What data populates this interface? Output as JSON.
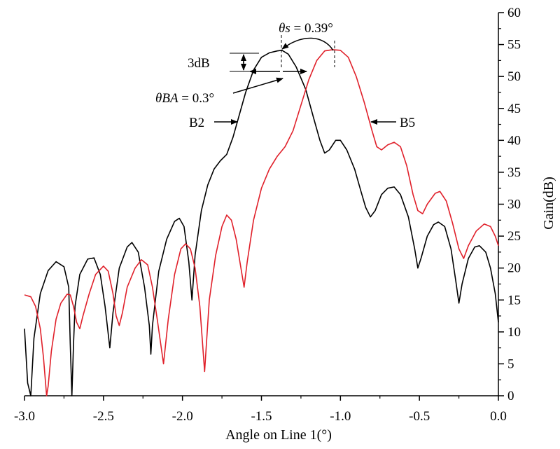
{
  "chart_data": {
    "type": "line",
    "xlabel": "Angle on Line 1(°)",
    "ylabel": "Gain(dB)",
    "xlim": [
      -3.0,
      0.0
    ],
    "ylim": [
      0,
      60
    ],
    "x_ticks": [
      "-3.0",
      "-2.5",
      "-2.0",
      "-1.5",
      "-1.0",
      "-0.5",
      "0.0"
    ],
    "y_ticks": [
      "0",
      "5",
      "10",
      "15",
      "20",
      "25",
      "30",
      "35",
      "40",
      "45",
      "50",
      "55",
      "60"
    ],
    "y_axis_side": "right",
    "grid": false,
    "series": [
      {
        "name": "B2",
        "color": "#000000",
        "points": [
          [
            -3.0,
            10.5
          ],
          [
            -2.98,
            2.0
          ],
          [
            -2.96,
            0
          ],
          [
            -2.94,
            9.0
          ],
          [
            -2.9,
            16.0
          ],
          [
            -2.85,
            19.6
          ],
          [
            -2.8,
            21.0
          ],
          [
            -2.75,
            20.2
          ],
          [
            -2.72,
            17.0
          ],
          [
            -2.71,
            8.0
          ],
          [
            -2.7,
            0
          ],
          [
            -2.69,
            8.0
          ],
          [
            -2.68,
            14.0
          ],
          [
            -2.65,
            19.0
          ],
          [
            -2.6,
            21.4
          ],
          [
            -2.56,
            21.6
          ],
          [
            -2.52,
            19.0
          ],
          [
            -2.49,
            14.0
          ],
          [
            -2.46,
            7.5
          ],
          [
            -2.44,
            13.0
          ],
          [
            -2.4,
            20.0
          ],
          [
            -2.35,
            23.3
          ],
          [
            -2.32,
            24.0
          ],
          [
            -2.28,
            22.5
          ],
          [
            -2.24,
            17.0
          ],
          [
            -2.21,
            11.0
          ],
          [
            -2.2,
            6.5
          ],
          [
            -2.19,
            11.0
          ],
          [
            -2.15,
            19.5
          ],
          [
            -2.1,
            24.5
          ],
          [
            -2.05,
            27.3
          ],
          [
            -2.02,
            27.8
          ],
          [
            -1.99,
            26.5
          ],
          [
            -1.96,
            21.0
          ],
          [
            -1.94,
            15.0
          ],
          [
            -1.92,
            22.0
          ],
          [
            -1.88,
            29.0
          ],
          [
            -1.84,
            33.0
          ],
          [
            -1.8,
            35.5
          ],
          [
            -1.76,
            36.8
          ],
          [
            -1.72,
            37.8
          ],
          [
            -1.68,
            40.5
          ],
          [
            -1.64,
            44.0
          ],
          [
            -1.6,
            47.5
          ],
          [
            -1.55,
            51.0
          ],
          [
            -1.5,
            53.0
          ],
          [
            -1.45,
            53.7
          ],
          [
            -1.4,
            54.0
          ],
          [
            -1.37,
            54.1
          ],
          [
            -1.33,
            53.5
          ],
          [
            -1.28,
            51.5
          ],
          [
            -1.22,
            48.0
          ],
          [
            -1.17,
            43.5
          ],
          [
            -1.13,
            40.0
          ],
          [
            -1.1,
            38.0
          ],
          [
            -1.07,
            38.5
          ],
          [
            -1.03,
            40.0
          ],
          [
            -1.0,
            40.0
          ],
          [
            -0.96,
            38.5
          ],
          [
            -0.91,
            35.5
          ],
          [
            -0.87,
            32.0
          ],
          [
            -0.84,
            29.5
          ],
          [
            -0.81,
            28.0
          ],
          [
            -0.78,
            29.0
          ],
          [
            -0.74,
            31.5
          ],
          [
            -0.7,
            32.5
          ],
          [
            -0.66,
            32.7
          ],
          [
            -0.62,
            31.5
          ],
          [
            -0.57,
            28.0
          ],
          [
            -0.53,
            23.0
          ],
          [
            -0.51,
            20.0
          ],
          [
            -0.49,
            21.5
          ],
          [
            -0.45,
            25.0
          ],
          [
            -0.41,
            26.8
          ],
          [
            -0.38,
            27.2
          ],
          [
            -0.34,
            26.5
          ],
          [
            -0.3,
            23.0
          ],
          [
            -0.27,
            18.0
          ],
          [
            -0.25,
            14.5
          ],
          [
            -0.23,
            17.5
          ],
          [
            -0.19,
            21.5
          ],
          [
            -0.15,
            23.3
          ],
          [
            -0.12,
            23.5
          ],
          [
            -0.08,
            22.5
          ],
          [
            -0.05,
            20.0
          ],
          [
            -0.02,
            16.0
          ],
          [
            0.0,
            11.5
          ]
        ]
      },
      {
        "name": "B5",
        "color": "#e0202a",
        "points": [
          [
            -3.0,
            15.8
          ],
          [
            -2.96,
            15.5
          ],
          [
            -2.93,
            14.0
          ],
          [
            -2.9,
            10.5
          ],
          [
            -2.88,
            6.0
          ],
          [
            -2.86,
            0
          ],
          [
            -2.85,
            1.5
          ],
          [
            -2.83,
            7.0
          ],
          [
            -2.8,
            12.0
          ],
          [
            -2.77,
            14.5
          ],
          [
            -2.73,
            15.9
          ],
          [
            -2.71,
            15.8
          ],
          [
            -2.69,
            14.0
          ],
          [
            -2.67,
            11.5
          ],
          [
            -2.65,
            10.5
          ],
          [
            -2.63,
            12.5
          ],
          [
            -2.59,
            16.0
          ],
          [
            -2.55,
            19.0
          ],
          [
            -2.5,
            20.3
          ],
          [
            -2.47,
            19.5
          ],
          [
            -2.44,
            16.0
          ],
          [
            -2.42,
            12.5
          ],
          [
            -2.4,
            11.0
          ],
          [
            -2.38,
            13.0
          ],
          [
            -2.35,
            17.0
          ],
          [
            -2.3,
            20.0
          ],
          [
            -2.26,
            21.3
          ],
          [
            -2.22,
            20.5
          ],
          [
            -2.19,
            17.0
          ],
          [
            -2.16,
            12.0
          ],
          [
            -2.12,
            5.0
          ],
          [
            -2.09,
            12.0
          ],
          [
            -2.05,
            19.0
          ],
          [
            -2.01,
            23.0
          ],
          [
            -1.98,
            23.8
          ],
          [
            -1.95,
            23.0
          ],
          [
            -1.92,
            20.0
          ],
          [
            -1.89,
            14.0
          ],
          [
            -1.86,
            3.8
          ],
          [
            -1.83,
            15.0
          ],
          [
            -1.79,
            22.0
          ],
          [
            -1.75,
            26.5
          ],
          [
            -1.72,
            28.3
          ],
          [
            -1.69,
            27.5
          ],
          [
            -1.66,
            24.5
          ],
          [
            -1.63,
            20.0
          ],
          [
            -1.61,
            17.0
          ],
          [
            -1.59,
            21.0
          ],
          [
            -1.55,
            27.5
          ],
          [
            -1.5,
            32.5
          ],
          [
            -1.45,
            35.5
          ],
          [
            -1.4,
            37.5
          ],
          [
            -1.35,
            39.0
          ],
          [
            -1.3,
            41.5
          ],
          [
            -1.25,
            45.5
          ],
          [
            -1.2,
            49.5
          ],
          [
            -1.15,
            52.5
          ],
          [
            -1.1,
            54.0
          ],
          [
            -1.05,
            54.2
          ],
          [
            -1.0,
            54.1
          ],
          [
            -0.95,
            53.0
          ],
          [
            -0.9,
            50.0
          ],
          [
            -0.85,
            46.0
          ],
          [
            -0.8,
            41.5
          ],
          [
            -0.77,
            39.0
          ],
          [
            -0.74,
            38.5
          ],
          [
            -0.7,
            39.3
          ],
          [
            -0.66,
            39.7
          ],
          [
            -0.62,
            39.0
          ],
          [
            -0.58,
            36.0
          ],
          [
            -0.54,
            31.5
          ],
          [
            -0.51,
            29.0
          ],
          [
            -0.48,
            28.5
          ],
          [
            -0.45,
            30.0
          ],
          [
            -0.4,
            31.7
          ],
          [
            -0.37,
            32.0
          ],
          [
            -0.33,
            30.5
          ],
          [
            -0.29,
            27.0
          ],
          [
            -0.25,
            23.0
          ],
          [
            -0.22,
            21.5
          ],
          [
            -0.19,
            23.5
          ],
          [
            -0.14,
            25.8
          ],
          [
            -0.09,
            26.9
          ],
          [
            -0.05,
            26.5
          ],
          [
            -0.02,
            25.0
          ],
          [
            0.0,
            23.5
          ]
        ]
      }
    ],
    "annotations": {
      "b2_label": "B2",
      "b5_label": "B5",
      "db_label": "3dB",
      "theta_s_symbol": "θs",
      "theta_s_text": " = 0.39°",
      "theta_ba_symbol": "θBA",
      "theta_ba_text": " = 0.3°"
    }
  }
}
